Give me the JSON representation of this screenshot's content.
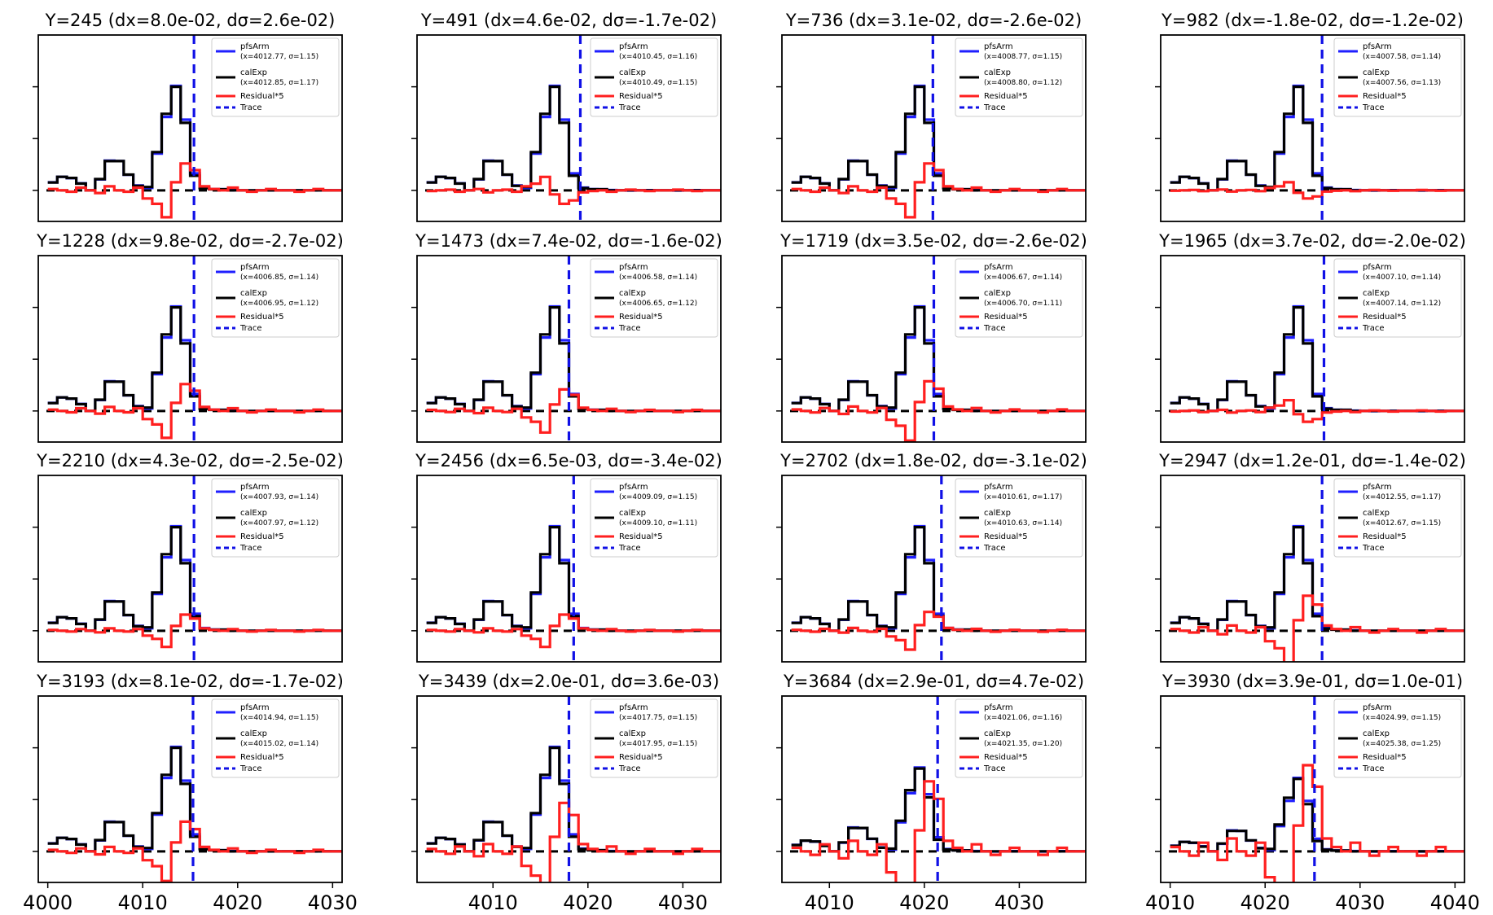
{
  "colors": {
    "pfsArm": "#1f1fff",
    "calExp": "#000000",
    "residual": "#ff1f1f",
    "trace": "#1010e6",
    "zero": "#000000"
  },
  "legend_labels": {
    "pfsArm": "pfsArm",
    "calExp": "calExp",
    "residual": "Residual*5",
    "trace": "Trace"
  },
  "chart_data": [
    {
      "type": "line",
      "title": "Y=245 (dx=8.0e-02, dσ=2.6e-02)",
      "pfsArm_fit": "(x=4012.77, σ=1.15)",
      "calExp_fit": "(x=4012.85, σ=1.17)",
      "xlim": [
        3999,
        4031
      ],
      "xticks": [],
      "trace_x": 4015.4,
      "x_start": 4000,
      "peak_bin": 4014,
      "peak_value": 1.0,
      "residual_scale": 1.0,
      "residual_sign": 1,
      "ylim": [
        -0.3,
        1.5
      ]
    },
    {
      "type": "line",
      "title": "Y=491 (dx=4.6e-02, dσ=-1.7e-02)",
      "pfsArm_fit": "(x=4010.45, σ=1.16)",
      "calExp_fit": "(x=4010.49, σ=1.15)",
      "xlim": [
        4002,
        4034
      ],
      "xticks": [],
      "trace_x": 4019.2,
      "x_start": 4003,
      "peak_bin": 4017,
      "peak_value": 1.0,
      "residual_scale": 0.5,
      "residual_sign": -1,
      "ylim": [
        -0.3,
        1.5
      ]
    },
    {
      "type": "line",
      "title": "Y=736 (dx=3.1e-02, dσ=-2.6e-02)",
      "pfsArm_fit": "(x=4008.77, σ=1.15)",
      "calExp_fit": "(x=4008.80, σ=1.12)",
      "xlim": [
        4005,
        4037
      ],
      "xticks": [],
      "trace_x": 4020.9,
      "x_start": 4006,
      "peak_bin": 4020,
      "peak_value": 1.0,
      "residual_scale": 1.0,
      "residual_sign": 1,
      "ylim": [
        -0.3,
        1.5
      ]
    },
    {
      "type": "line",
      "title": "Y=982 (dx=-1.8e-02, dσ=-1.2e-02)",
      "pfsArm_fit": "(x=4007.58, σ=1.14)",
      "calExp_fit": "(x=4007.56, σ=1.13)",
      "xlim": [
        4009,
        4041
      ],
      "xticks": [],
      "trace_x": 4026.0,
      "x_start": 4010,
      "peak_bin": 4025,
      "peak_value": 1.0,
      "residual_scale": 0.3,
      "residual_sign": -1,
      "ylim": [
        -0.3,
        1.5
      ]
    },
    {
      "type": "line",
      "title": "Y=1228 (dx=9.8e-02, dσ=-2.7e-02)",
      "pfsArm_fit": "(x=4006.85, σ=1.14)",
      "calExp_fit": "(x=4006.95, σ=1.12)",
      "xlim": [
        3999,
        4031
      ],
      "xticks": [],
      "trace_x": 4015.4,
      "x_start": 4000,
      "peak_bin": 4014,
      "peak_value": 1.0,
      "residual_scale": 1.0,
      "residual_sign": 1,
      "ylim": [
        -0.3,
        1.5
      ]
    },
    {
      "type": "line",
      "title": "Y=1473 (dx=7.4e-02, dσ=-1.6e-02)",
      "pfsArm_fit": "(x=4006.58, σ=1.14)",
      "calExp_fit": "(x=4006.65, σ=1.12)",
      "xlim": [
        4002,
        4034
      ],
      "xticks": [],
      "trace_x": 4018.0,
      "x_start": 4003,
      "peak_bin": 4017,
      "peak_value": 1.0,
      "residual_scale": 0.8,
      "residual_sign": 1,
      "ylim": [
        -0.3,
        1.5
      ]
    },
    {
      "type": "line",
      "title": "Y=1719 (dx=3.5e-02, dσ=-2.6e-02)",
      "pfsArm_fit": "(x=4006.67, σ=1.14)",
      "calExp_fit": "(x=4006.70, σ=1.11)",
      "xlim": [
        4005,
        4037
      ],
      "xticks": [],
      "trace_x": 4021.0,
      "x_start": 4006,
      "peak_bin": 4020,
      "peak_value": 1.0,
      "residual_scale": 1.1,
      "residual_sign": 1,
      "ylim": [
        -0.3,
        1.5
      ]
    },
    {
      "type": "line",
      "title": "Y=1965 (dx=3.7e-02, dσ=-2.0e-02)",
      "pfsArm_fit": "(x=4007.10, σ=1.14)",
      "calExp_fit": "(x=4007.14, σ=1.12)",
      "xlim": [
        4009,
        4041
      ],
      "xticks": [],
      "trace_x": 4026.2,
      "x_start": 4010,
      "peak_bin": 4025,
      "peak_value": 1.0,
      "residual_scale": 0.4,
      "residual_sign": -1,
      "ylim": [
        -0.3,
        1.5
      ]
    },
    {
      "type": "line",
      "title": "Y=2210 (dx=4.3e-02, dσ=-2.5e-02)",
      "pfsArm_fit": "(x=4007.93, σ=1.14)",
      "calExp_fit": "(x=4007.97, σ=1.12)",
      "xlim": [
        3999,
        4031
      ],
      "xticks": [],
      "trace_x": 4015.4,
      "x_start": 4000,
      "peak_bin": 4014,
      "peak_value": 1.0,
      "residual_scale": 0.6,
      "residual_sign": 1,
      "ylim": [
        -0.3,
        1.5
      ]
    },
    {
      "type": "line",
      "title": "Y=2456 (dx=6.5e-03, dσ=-3.4e-02)",
      "pfsArm_fit": "(x=4009.09, σ=1.15)",
      "calExp_fit": "(x=4009.10, σ=1.11)",
      "xlim": [
        4002,
        4034
      ],
      "xticks": [],
      "trace_x": 4018.5,
      "x_start": 4003,
      "peak_bin": 4017,
      "peak_value": 1.0,
      "residual_scale": 0.6,
      "residual_sign": 1,
      "ylim": [
        -0.3,
        1.5
      ]
    },
    {
      "type": "line",
      "title": "Y=2702 (dx=1.8e-02, dσ=-3.1e-02)",
      "pfsArm_fit": "(x=4010.61, σ=1.17)",
      "calExp_fit": "(x=4010.63, σ=1.14)",
      "xlim": [
        4005,
        4037
      ],
      "xticks": [],
      "trace_x": 4021.8,
      "x_start": 4006,
      "peak_bin": 4020,
      "peak_value": 1.0,
      "residual_scale": 0.7,
      "residual_sign": 1,
      "ylim": [
        -0.3,
        1.5
      ]
    },
    {
      "type": "line",
      "title": "Y=2947 (dx=1.2e-01, dσ=-1.4e-02)",
      "pfsArm_fit": "(x=4012.55, σ=1.17)",
      "calExp_fit": "(x=4012.67, σ=1.15)",
      "xlim": [
        4009,
        4041
      ],
      "xticks": [],
      "trace_x": 4026.0,
      "x_start": 4010,
      "peak_bin": 4025,
      "peak_value": 1.0,
      "residual_scale": 1.3,
      "residual_sign": 1,
      "ylim": [
        -0.3,
        1.5
      ]
    },
    {
      "type": "line",
      "title": "Y=3193 (dx=8.1e-02, dσ=-1.7e-02)",
      "pfsArm_fit": "(x=4014.94, σ=1.15)",
      "calExp_fit": "(x=4015.02, σ=1.14)",
      "xlim": [
        3999,
        4031
      ],
      "xticks": [
        4000,
        4010,
        4020,
        4030
      ],
      "trace_x": 4015.3,
      "x_start": 4000,
      "peak_bin": 4014,
      "peak_value": 1.0,
      "residual_scale": 1.1,
      "residual_sign": 1,
      "ylim": [
        -0.3,
        1.5
      ]
    },
    {
      "type": "line",
      "title": "Y=3439 (dx=2.0e-01, dσ=3.6e-03)",
      "pfsArm_fit": "(x=4017.75, σ=1.15)",
      "calExp_fit": "(x=4017.95, σ=1.15)",
      "xlim": [
        4002,
        4034
      ],
      "xticks": [
        4010,
        4020,
        4030
      ],
      "trace_x": 4018.0,
      "x_start": 4003,
      "peak_bin": 4017,
      "peak_value": 1.0,
      "residual_scale": 1.8,
      "residual_sign": 1,
      "ylim": [
        -0.3,
        1.5
      ]
    },
    {
      "type": "line",
      "title": "Y=3684 (dx=2.9e-01, dσ=4.7e-02)",
      "pfsArm_fit": "(x=4021.06, σ=1.16)",
      "calExp_fit": "(x=4021.35, σ=1.20)",
      "xlim": [
        4005,
        4037
      ],
      "xticks": [
        4010,
        4020,
        4030
      ],
      "trace_x": 4021.4,
      "x_start": 4006,
      "peak_bin": 4020,
      "peak_value": 0.8,
      "residual_scale": 2.6,
      "residual_sign": 1,
      "ylim": [
        -0.3,
        1.5
      ]
    },
    {
      "type": "line",
      "title": "Y=3930 (dx=3.9e-01, dσ=1.0e-01)",
      "pfsArm_fit": "(x=4024.99, σ=1.15)",
      "calExp_fit": "(x=4025.38, σ=1.25)",
      "xlim": [
        4009,
        4041
      ],
      "xticks": [
        4010,
        4020,
        4030,
        4040
      ],
      "trace_x": 4025.2,
      "x_start": 4010,
      "peak_bin": 4025,
      "peak_value": 0.7,
      "residual_scale": 3.2,
      "residual_sign": 1,
      "ylim": [
        -0.3,
        1.5
      ]
    }
  ]
}
